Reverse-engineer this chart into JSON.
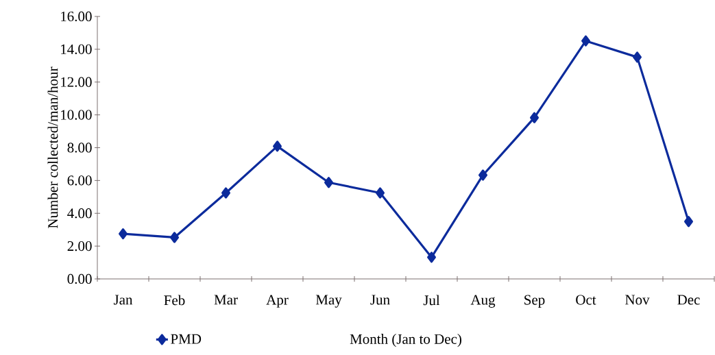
{
  "chart_data": {
    "type": "line",
    "xlabel": "Month (Jan to Dec)",
    "ylabel": "Number collected/man/hour",
    "categories": [
      "Jan",
      "Feb",
      "Mar",
      "Apr",
      "May",
      "Jun",
      "Jul",
      "Aug",
      "Sep",
      "Oct",
      "Nov",
      "Dec"
    ],
    "series": [
      {
        "name": "PMD",
        "color": "#0c2b9c",
        "values": [
          2.75,
          2.53,
          5.24,
          8.09,
          5.88,
          5.24,
          1.32,
          6.33,
          9.83,
          14.51,
          13.52,
          3.5
        ]
      }
    ],
    "ylim": [
      0,
      16
    ],
    "yticks": [
      {
        "value": 0,
        "label": "0.00"
      },
      {
        "value": 2,
        "label": "2.00"
      },
      {
        "value": 4,
        "label": "4.00"
      },
      {
        "value": 6,
        "label": "6.00"
      },
      {
        "value": 8,
        "label": "8.00"
      },
      {
        "value": 10,
        "label": "10.00"
      },
      {
        "value": 12,
        "label": "12.00"
      },
      {
        "value": 14,
        "label": "14.00"
      },
      {
        "value": 16,
        "label": "16.00"
      }
    ],
    "grid": false,
    "legend": "bottom left",
    "marker": "diamond",
    "line_style": "solid"
  }
}
